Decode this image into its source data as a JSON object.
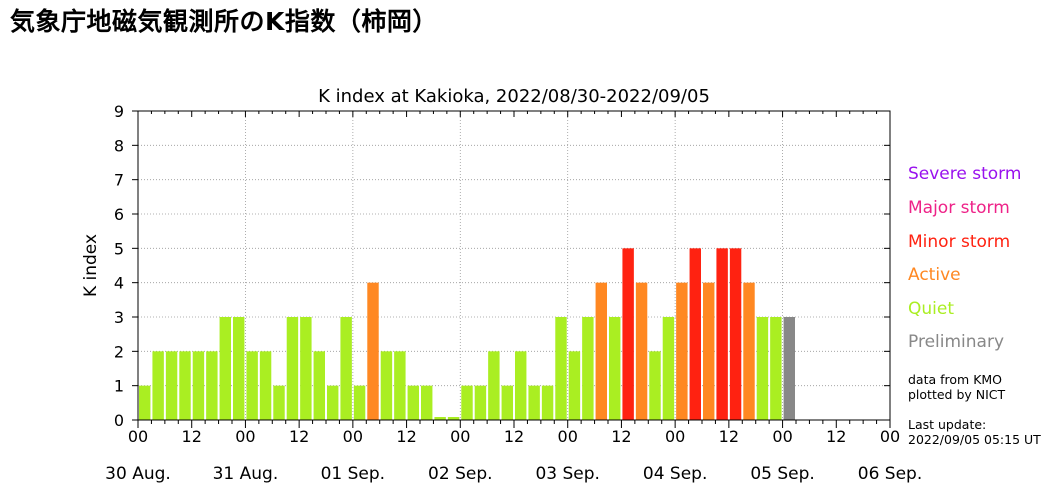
{
  "page": {
    "heading": "気象庁地磁気観測所のK指数（柿岡）"
  },
  "chart_data": {
    "type": "bar",
    "title": "K index at Kakioka, 2022/08/30-2022/09/05",
    "ylabel": "K index",
    "xlabel": "",
    "ylim": [
      0,
      9
    ],
    "yticks": [
      0,
      1,
      2,
      3,
      4,
      5,
      6,
      7,
      8,
      9
    ],
    "grid": true,
    "interval_hours": 3,
    "x_tick_labels": [
      "00",
      "12",
      "00",
      "12",
      "00",
      "12",
      "00",
      "12",
      "00",
      "12",
      "00",
      "12",
      "00",
      "12",
      "00"
    ],
    "date_labels": [
      "30 Aug.",
      "31 Aug.",
      "01 Sep.",
      "02 Sep.",
      "03 Sep.",
      "04 Sep.",
      "05 Sep.",
      "06 Sep."
    ],
    "values": [
      1,
      2,
      2,
      2,
      2,
      2,
      3,
      3,
      2,
      2,
      1,
      3,
      3,
      2,
      1,
      3,
      1,
      4,
      2,
      2,
      1,
      1,
      0,
      0,
      1,
      1,
      2,
      1,
      2,
      1,
      1,
      3,
      2,
      3,
      4,
      3,
      5,
      4,
      2,
      3,
      4,
      5,
      4,
      5,
      5,
      4,
      3,
      3,
      3
    ],
    "preliminary_count": 1,
    "level_colors": {
      "quiet": "#aaee22",
      "active": "#ff8822",
      "minor": "#ff2211",
      "preliminary": "#888888"
    },
    "legend": [
      {
        "label": "Severe storm",
        "color": "#9911ee"
      },
      {
        "label": "Major storm",
        "color": "#ee2288"
      },
      {
        "label": "Minor storm",
        "color": "#ff2211"
      },
      {
        "label": "Active",
        "color": "#ff8822"
      },
      {
        "label": "Quiet",
        "color": "#aaee22"
      },
      {
        "label": "Preliminary",
        "color": "#888888"
      }
    ],
    "notes": {
      "source_line1": "data from KMO",
      "source_line2": "plotted by NICT",
      "update_line1": "Last update:",
      "update_line2": "2022/09/05 05:15 UT"
    }
  }
}
